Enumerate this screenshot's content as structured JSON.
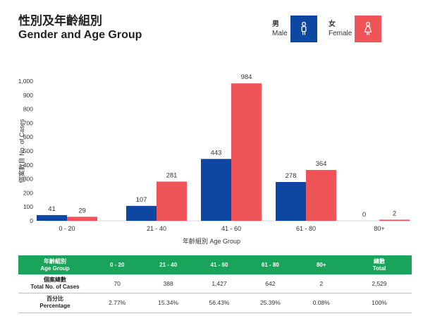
{
  "header": {
    "title_zh": "性別及年齡組別",
    "title_en": "Gender and Age Group"
  },
  "legend": {
    "male_zh": "男",
    "male_en": "Male",
    "female_zh": "女",
    "female_en": "Female",
    "male_icon": "male-person-icon",
    "female_icon": "female-person-icon"
  },
  "colors": {
    "male": "#0e47a1",
    "female": "#ef5458",
    "table_header": "#1aa35b"
  },
  "chart_data": {
    "type": "bar",
    "categories": [
      "0 - 20",
      "21 - 40",
      "41 - 60",
      "61 - 80",
      "80+"
    ],
    "series": [
      {
        "name": "Male",
        "values": [
          41,
          107,
          443,
          278,
          0
        ]
      },
      {
        "name": "Female",
        "values": [
          29,
          281,
          984,
          364,
          2
        ]
      }
    ],
    "data_labels": [
      [
        "41",
        "107",
        "443",
        "278",
        "0"
      ],
      [
        "29",
        "281",
        "984",
        "364",
        "2"
      ]
    ],
    "xlabel": "年齡組別 Age Group",
    "ylabel": "個案數目 No. of Cases",
    "yticks": [
      0,
      100,
      200,
      300,
      400,
      500,
      600,
      700,
      800,
      900,
      1000
    ],
    "ytick_labels": [
      "0",
      "100",
      "200",
      "300",
      "400",
      "500",
      "600",
      "700",
      "800",
      "900",
      "1,000"
    ],
    "ylim": [
      0,
      1000
    ],
    "grid": false,
    "legend_position": "top-right"
  },
  "table": {
    "header": {
      "label_zh": "年齡組別",
      "label_en": "Age Group",
      "groups": [
        "0 - 20",
        "21 - 40",
        "41 - 60",
        "61 - 80",
        "80+"
      ],
      "total_zh": "總數",
      "total_en": "Total"
    },
    "rows": [
      {
        "label_zh": "個案總數",
        "label_en": "Total No. of Cases",
        "values": [
          "70",
          "388",
          "1,427",
          "642",
          "2"
        ],
        "total": "2,529"
      },
      {
        "label_zh": "百分比",
        "label_en": "Percentage",
        "values": [
          "2.77%",
          "15.34%",
          "56.43%",
          "25.39%",
          "0.08%"
        ],
        "total": "100%"
      }
    ]
  }
}
